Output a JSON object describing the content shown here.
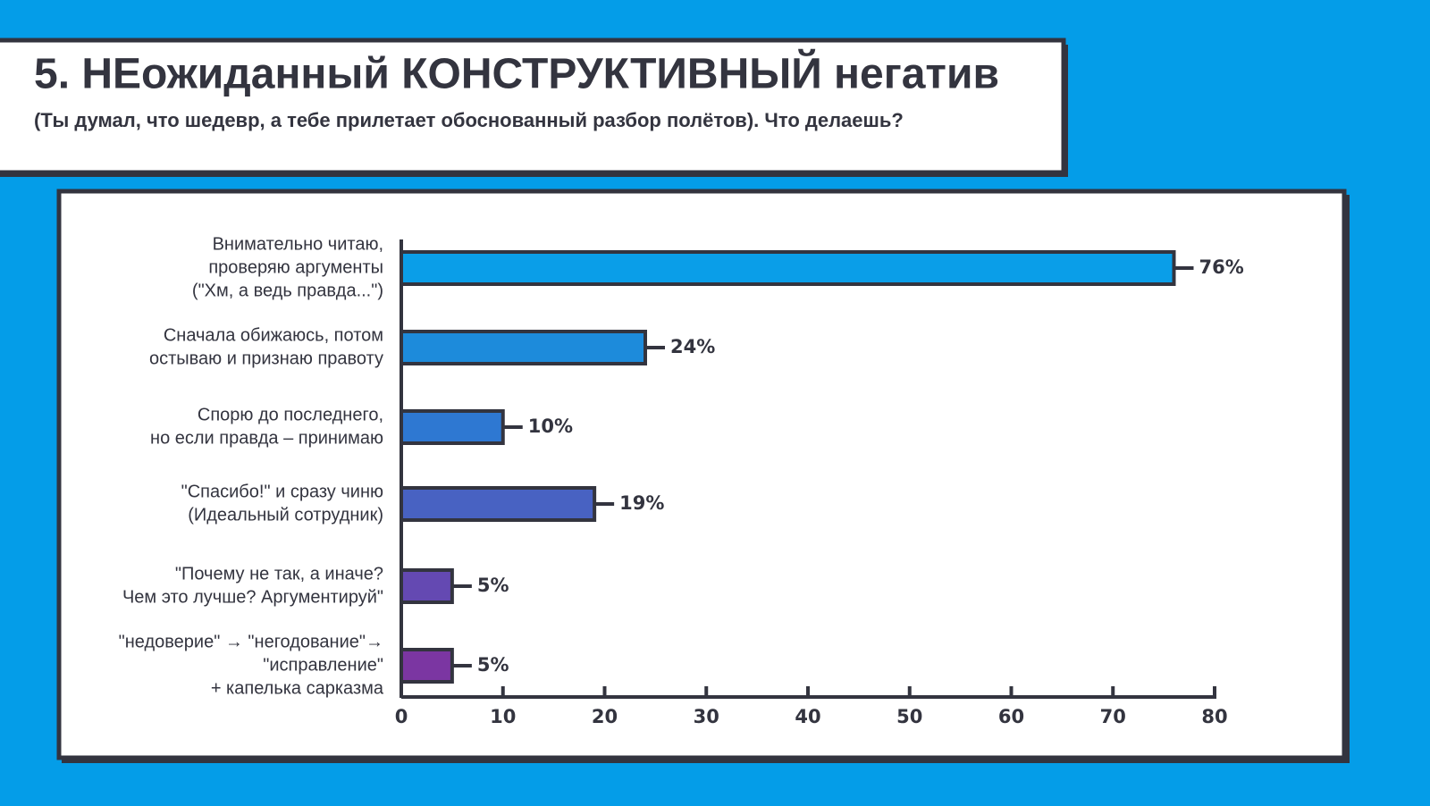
{
  "chart_data": {
    "type": "barh",
    "title": "5. НЕожиданный КОНСТРУКТИВНЫЙ негатив",
    "subtitle": "(Ты думал, что шедевр, а тебе прилетает обоснованный разбор полётов). Что делаешь?",
    "categories": [
      [
        "Внимательно читаю,",
        "проверяю аргументы",
        "(\"Хм, а ведь правда...\")"
      ],
      [
        "Сначала обижаюсь, потом",
        "остываю и признаю правоту"
      ],
      [
        "Спорю до последнего,",
        "но если правда – принимаю"
      ],
      [
        "\"Спасибо!\" и сразу чиню",
        "(Идеальный сотрудник)"
      ],
      [
        "\"Почему не так, а иначе?",
        "Чем это лучше? Аргументируй\""
      ],
      [
        "\"недоверие\" → \"негодование\"→",
        "\"исправление\"",
        "+ капелька сарказма"
      ]
    ],
    "values": [
      76,
      24,
      10,
      19,
      5,
      5
    ],
    "value_labels": [
      "76%",
      "24%",
      "10%",
      "19%",
      "5%",
      "5%"
    ],
    "colors": [
      "#0a9ee8",
      "#1d8bdb",
      "#2e78d2",
      "#4862c2",
      "#6449b2",
      "#7b36a2"
    ],
    "xlim": [
      0,
      80
    ],
    "xticks": [
      0,
      10,
      20,
      30,
      40,
      50,
      60,
      70,
      80
    ]
  }
}
